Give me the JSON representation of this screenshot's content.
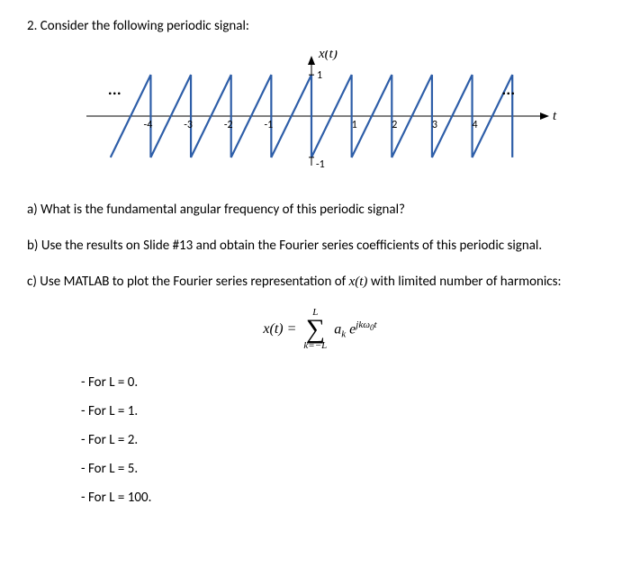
{
  "question": {
    "number": "2.",
    "prompt": "Consider the following periodic signal:"
  },
  "figure": {
    "xlabel": "t",
    "ylabel": "x(t)",
    "line_color": "#2e5ea8",
    "axis_color": "#000000",
    "line_width": 2.2,
    "xlim": [
      -5.6,
      5.6
    ],
    "ylim": [
      -1.2,
      1.2
    ],
    "y_amplitude": 1,
    "x_ticks": [
      -4,
      -3,
      -2,
      -1,
      1,
      2,
      3,
      4
    ],
    "y_ticks_pos": [
      1
    ],
    "y_ticks_neg": [
      -1
    ],
    "period": 1,
    "dots_left_x": -4.9,
    "dots_right_x": 4.9,
    "periods_drawn_start": -5,
    "periods_drawn_end": 5
  },
  "parts": {
    "a": "a) What is the fundamental angular frequency of this periodic signal?",
    "b": "b) Use the results on Slide #13 and obtain the Fourier series coefficients of this periodic signal.",
    "c_lead": "c) Use MATLAB to plot the Fourier series representation of ",
    "c_var": "x(t)",
    "c_trail": " with limited number of harmonics:"
  },
  "formula": {
    "lhs": "x(t) =",
    "sum_top": "L",
    "sum_bot": "k=−L",
    "coef": "a",
    "coef_sub": "k",
    "exp_base": "e",
    "exp_sup": "jkω",
    "exp_sup_sub": "0",
    "exp_sup_tail": "t"
  },
  "L_values": {
    "i0": "- For L = 0.",
    "i1": "- For L = 1.",
    "i2": "- For L = 2.",
    "i3": "- For L = 5.",
    "i4": "- For L = 100."
  }
}
